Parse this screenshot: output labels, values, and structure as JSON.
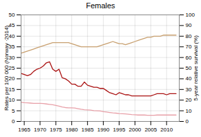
{
  "chart_data": {
    "type": "line",
    "title": "Females",
    "ylabel": "Rates per 100 000 (Norway ·2014)",
    "y2label": "5-year relative survival (%)",
    "x": [
      1964,
      1965,
      1966,
      1967,
      1968,
      1969,
      1970,
      1971,
      1972,
      1973,
      1974,
      1975,
      1976,
      1977,
      1978,
      1979,
      1980,
      1981,
      1982,
      1983,
      1984,
      1985,
      1986,
      1987,
      1988,
      1989,
      1990,
      1991,
      1992,
      1993,
      1994,
      1995,
      1996,
      1997,
      1998,
      1999,
      2000,
      2001,
      2002,
      2003,
      2004,
      2005,
      2006,
      2007,
      2008,
      2009,
      2010,
      2011,
      2012,
      2013
    ],
    "xlim": [
      1964,
      2014
    ],
    "xticks": [
      1965,
      1970,
      1975,
      1980,
      1985,
      1990,
      1995,
      2000,
      2005,
      2010
    ],
    "ylim": [
      0,
      50
    ],
    "yticks": [
      0,
      5,
      10,
      15,
      20,
      25,
      30,
      35,
      40,
      45,
      50
    ],
    "y2lim": [
      0,
      100
    ],
    "y2ticks": [
      0,
      10,
      20,
      30,
      40,
      50,
      60,
      70,
      80,
      90,
      100
    ],
    "grid": true,
    "series": [
      {
        "color": "#c8a070",
        "values": [
          32.0,
          32.5,
          33.0,
          33.5,
          34.0,
          34.5,
          35.0,
          35.5,
          36.0,
          36.5,
          37.0,
          37.0,
          37.0,
          37.0,
          37.0,
          37.0,
          36.5,
          36.0,
          35.5,
          35.0,
          35.0,
          35.0,
          35.0,
          35.0,
          35.0,
          35.5,
          36.0,
          36.5,
          37.0,
          37.5,
          37.0,
          36.5,
          36.5,
          36.0,
          36.5,
          37.0,
          37.5,
          38.0,
          38.5,
          39.0,
          39.5,
          39.5,
          40.0,
          40.0,
          40.0,
          40.5,
          40.5,
          40.5,
          40.5,
          40.5
        ]
      },
      {
        "color": "#aa1111",
        "values": [
          22.5,
          22.0,
          21.5,
          22.0,
          23.5,
          24.5,
          25.0,
          26.0,
          27.5,
          28.0,
          24.5,
          23.5,
          24.5,
          20.5,
          20.0,
          19.0,
          17.5,
          17.5,
          16.5,
          16.5,
          18.5,
          17.0,
          16.5,
          16.0,
          16.0,
          15.5,
          15.5,
          14.5,
          13.5,
          13.0,
          12.5,
          13.5,
          13.0,
          12.5,
          12.5,
          12.0,
          12.0,
          12.0,
          12.0,
          12.0,
          12.0,
          12.0,
          12.5,
          13.0,
          13.0,
          13.0,
          12.5,
          13.0,
          13.0,
          13.0
        ]
      },
      {
        "color": "#e8a0a8",
        "values": [
          9.0,
          8.8,
          8.7,
          8.6,
          8.5,
          8.5,
          8.5,
          8.4,
          8.2,
          8.0,
          7.8,
          7.5,
          7.2,
          6.8,
          6.5,
          6.4,
          6.4,
          6.3,
          6.0,
          5.7,
          5.5,
          5.4,
          5.3,
          5.1,
          5.0,
          4.9,
          4.6,
          4.4,
          4.2,
          4.0,
          3.9,
          3.7,
          3.6,
          3.5,
          3.4,
          3.2,
          3.1,
          3.0,
          3.0,
          3.0,
          2.9,
          2.9,
          2.9,
          3.0,
          3.0,
          3.0,
          3.0,
          3.0,
          3.0,
          3.0
        ]
      }
    ]
  }
}
